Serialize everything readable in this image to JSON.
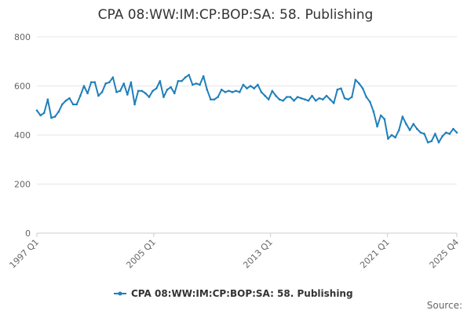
{
  "chart_data": {
    "type": "line",
    "title": "CPA 08:WW:IM:CP:BOP:SA: 58. Publishing",
    "xlabel": "",
    "ylabel": "",
    "ylim": [
      0,
      800
    ],
    "y_ticks": [
      0,
      200,
      400,
      600,
      800
    ],
    "x_tick_labels": [
      "1997 Q1",
      "2005 Q1",
      "2013 Q1",
      "2021 Q1",
      "2025 Q4"
    ],
    "start_period": "1997 Q1",
    "end_period": "2025 Q4",
    "grid": true,
    "legend_position": "bottom",
    "source_label": "Source:",
    "series": [
      {
        "name": "CPA 08:WW:IM:CP:BOP:SA: 58. Publishing",
        "color": "#1f7fba",
        "values": [
          500,
          480,
          490,
          545,
          470,
          475,
          495,
          525,
          540,
          550,
          525,
          525,
          560,
          600,
          570,
          615,
          615,
          560,
          575,
          610,
          615,
          635,
          575,
          580,
          610,
          565,
          615,
          525,
          580,
          580,
          570,
          555,
          580,
          590,
          620,
          555,
          585,
          595,
          570,
          620,
          620,
          635,
          645,
          605,
          610,
          605,
          640,
          585,
          545,
          545,
          555,
          585,
          575,
          580,
          575,
          580,
          575,
          605,
          590,
          600,
          590,
          605,
          575,
          560,
          545,
          580,
          560,
          545,
          540,
          555,
          555,
          540,
          555,
          550,
          545,
          540,
          560,
          540,
          550,
          545,
          560,
          545,
          530,
          585,
          590,
          550,
          545,
          555,
          625,
          610,
          590,
          555,
          535,
          495,
          435,
          480,
          465,
          385,
          400,
          390,
          420,
          475,
          445,
          420,
          445,
          425,
          410,
          405,
          370,
          375,
          405,
          370,
          395,
          410,
          405,
          425,
          410
        ]
      }
    ]
  }
}
